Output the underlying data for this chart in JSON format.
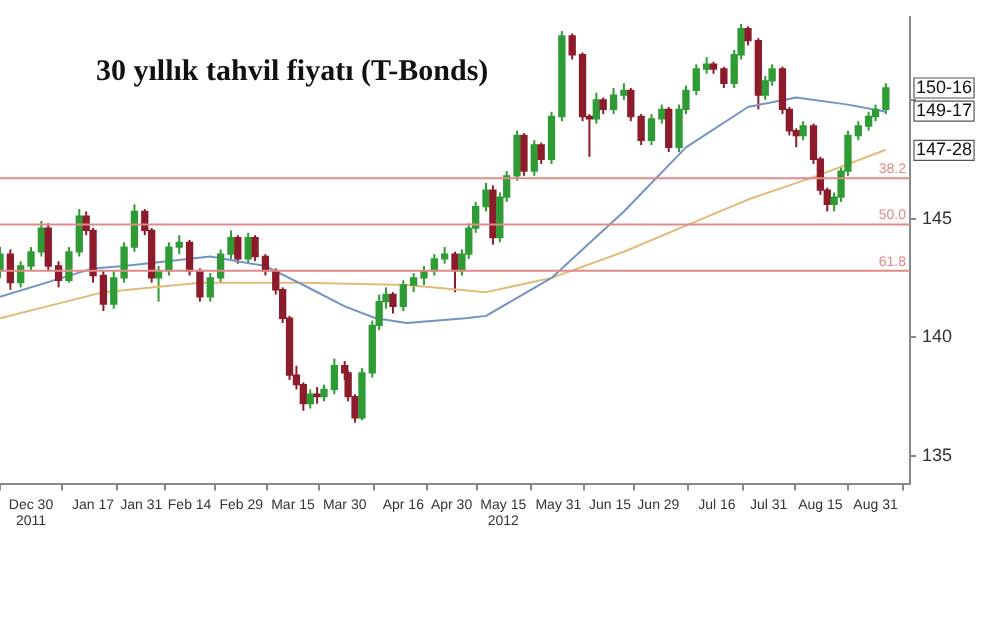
{
  "chart_data": {
    "type": "candlestick",
    "title": "30 yıllık tahvil fiyatı (T-Bonds)",
    "x": [
      "2011-12-21",
      "2011-12-24",
      "2011-12-27",
      "2011-12-30",
      "2012-01-02",
      "2012-01-04",
      "2012-01-07",
      "2012-01-10",
      "2012-01-13",
      "2012-01-15",
      "2012-01-17",
      "2012-01-20",
      "2012-01-23",
      "2012-01-26",
      "2012-01-29",
      "2012-02-01",
      "2012-02-03",
      "2012-02-05",
      "2012-02-08",
      "2012-02-11",
      "2012-02-14",
      "2012-02-17",
      "2012-02-20",
      "2012-02-23",
      "2012-02-26",
      "2012-02-28",
      "2012-03-02",
      "2012-03-04",
      "2012-03-07",
      "2012-03-10",
      "2012-03-12",
      "2012-03-14",
      "2012-03-16",
      "2012-03-18",
      "2012-03-20",
      "2012-03-22",
      "2012-03-24",
      "2012-03-27",
      "2012-03-30",
      "2012-03-31",
      "2012-04-02",
      "2012-04-04",
      "2012-04-07",
      "2012-04-09",
      "2012-04-11",
      "2012-04-13",
      "2012-04-16",
      "2012-04-19",
      "2012-04-22",
      "2012-04-25",
      "2012-04-28",
      "2012-05-01",
      "2012-05-03",
      "2012-05-05",
      "2012-05-07",
      "2012-05-10",
      "2012-05-12",
      "2012-05-14",
      "2012-05-16",
      "2012-05-19",
      "2012-05-21",
      "2012-05-24",
      "2012-05-26",
      "2012-05-29",
      "2012-06-01",
      "2012-06-04",
      "2012-06-07",
      "2012-06-09",
      "2012-06-11",
      "2012-06-13",
      "2012-06-16",
      "2012-06-19",
      "2012-06-21",
      "2012-06-24",
      "2012-06-27",
      "2012-06-30",
      "2012-07-02",
      "2012-07-05",
      "2012-07-07",
      "2012-07-10",
      "2012-07-13",
      "2012-07-15",
      "2012-07-18",
      "2012-07-21",
      "2012-07-23",
      "2012-07-25",
      "2012-07-28",
      "2012-07-30",
      "2012-08-01",
      "2012-08-04",
      "2012-08-06",
      "2012-08-08",
      "2012-08-10",
      "2012-08-13",
      "2012-08-15",
      "2012-08-17",
      "2012-08-19",
      "2012-08-21",
      "2012-08-23",
      "2012-08-26",
      "2012-08-29",
      "2012-08-31",
      "2012-09-03"
    ],
    "ohlc": [
      [
        142.8,
        143.8,
        142.5,
        143.5
      ],
      [
        143.5,
        143.7,
        142.0,
        142.3
      ],
      [
        142.3,
        143.2,
        142.1,
        143.0
      ],
      [
        143.0,
        143.8,
        142.8,
        143.6
      ],
      [
        143.6,
        144.9,
        143.4,
        144.6
      ],
      [
        144.6,
        144.8,
        142.8,
        143.0
      ],
      [
        143.0,
        143.2,
        142.1,
        142.4
      ],
      [
        142.4,
        143.8,
        142.3,
        143.6
      ],
      [
        143.6,
        145.4,
        143.4,
        145.1
      ],
      [
        145.1,
        145.3,
        144.3,
        144.5
      ],
      [
        144.5,
        144.6,
        142.3,
        142.6
      ],
      [
        142.6,
        142.8,
        141.1,
        141.4
      ],
      [
        141.4,
        142.8,
        141.2,
        142.5
      ],
      [
        142.5,
        144.0,
        142.3,
        143.8
      ],
      [
        143.8,
        145.6,
        143.6,
        145.3
      ],
      [
        145.3,
        145.4,
        144.3,
        144.5
      ],
      [
        144.5,
        144.6,
        142.3,
        142.5
      ],
      [
        142.5,
        143.0,
        141.5,
        142.8
      ],
      [
        142.8,
        144.0,
        142.6,
        143.8
      ],
      [
        143.8,
        144.3,
        143.5,
        144.0
      ],
      [
        144.0,
        144.1,
        142.6,
        142.8
      ],
      [
        142.8,
        142.9,
        141.5,
        141.7
      ],
      [
        141.7,
        142.7,
        141.5,
        142.5
      ],
      [
        142.5,
        143.7,
        142.3,
        143.5
      ],
      [
        143.5,
        144.5,
        143.3,
        144.2
      ],
      [
        144.2,
        144.3,
        143.1,
        143.3
      ],
      [
        143.3,
        144.4,
        143.1,
        144.2
      ],
      [
        144.2,
        144.3,
        143.2,
        143.4
      ],
      [
        143.4,
        143.5,
        142.6,
        142.8
      ],
      [
        142.8,
        142.9,
        141.8,
        142.0
      ],
      [
        142.0,
        142.1,
        140.6,
        140.8
      ],
      [
        140.8,
        140.9,
        138.2,
        138.4
      ],
      [
        138.4,
        138.8,
        137.8,
        138.0
      ],
      [
        138.0,
        138.1,
        136.9,
        137.2
      ],
      [
        137.2,
        137.8,
        137.0,
        137.6
      ],
      [
        137.6,
        137.9,
        137.2,
        137.5
      ],
      [
        137.5,
        138.0,
        137.3,
        137.8
      ],
      [
        137.8,
        139.1,
        137.6,
        138.8
      ],
      [
        138.8,
        139.0,
        138.2,
        138.5
      ],
      [
        138.5,
        138.6,
        137.3,
        137.5
      ],
      [
        137.5,
        137.6,
        136.4,
        136.6
      ],
      [
        136.6,
        138.7,
        136.5,
        138.5
      ],
      [
        138.5,
        140.7,
        138.3,
        140.5
      ],
      [
        140.5,
        141.8,
        140.3,
        141.5
      ],
      [
        141.5,
        142.1,
        141.2,
        141.8
      ],
      [
        141.8,
        141.9,
        141.0,
        141.3
      ],
      [
        141.3,
        142.4,
        141.1,
        142.2
      ],
      [
        142.2,
        142.7,
        141.9,
        142.5
      ],
      [
        142.5,
        143.0,
        142.2,
        142.8
      ],
      [
        142.8,
        143.5,
        142.6,
        143.3
      ],
      [
        143.3,
        143.8,
        143.1,
        143.5
      ],
      [
        143.5,
        143.6,
        141.9,
        142.8
      ],
      [
        142.8,
        143.7,
        142.6,
        143.5
      ],
      [
        143.5,
        144.8,
        143.3,
        144.6
      ],
      [
        144.6,
        145.7,
        144.4,
        145.5
      ],
      [
        145.5,
        146.5,
        145.3,
        146.2
      ],
      [
        146.2,
        146.4,
        143.9,
        144.2
      ],
      [
        144.2,
        146.1,
        144.0,
        145.9
      ],
      [
        145.9,
        147.0,
        145.7,
        146.8
      ],
      [
        146.8,
        148.7,
        146.6,
        148.5
      ],
      [
        148.5,
        148.6,
        146.8,
        147.0
      ],
      [
        147.0,
        148.3,
        146.8,
        148.1
      ],
      [
        148.1,
        148.2,
        147.3,
        147.5
      ],
      [
        147.5,
        149.5,
        147.3,
        149.3
      ],
      [
        149.3,
        152.9,
        149.1,
        152.7
      ],
      [
        152.7,
        152.8,
        151.7,
        151.9
      ],
      [
        151.9,
        152.0,
        149.1,
        149.3
      ],
      [
        149.3,
        149.4,
        147.6,
        149.2
      ],
      [
        149.2,
        150.3,
        149.0,
        150.0
      ],
      [
        150.0,
        150.1,
        149.4,
        149.6
      ],
      [
        149.6,
        150.5,
        149.4,
        150.2
      ],
      [
        150.2,
        150.7,
        150.0,
        150.4
      ],
      [
        150.4,
        150.5,
        149.1,
        149.3
      ],
      [
        149.3,
        149.4,
        148.1,
        148.3
      ],
      [
        148.3,
        149.4,
        148.1,
        149.2
      ],
      [
        149.2,
        149.8,
        149.0,
        149.6
      ],
      [
        149.6,
        149.7,
        147.8,
        148.0
      ],
      [
        148.0,
        149.8,
        147.8,
        149.6
      ],
      [
        149.6,
        150.6,
        149.4,
        150.4
      ],
      [
        150.4,
        151.5,
        150.2,
        151.3
      ],
      [
        151.3,
        151.8,
        151.1,
        151.5
      ],
      [
        151.5,
        151.6,
        151.1,
        151.3
      ],
      [
        151.3,
        151.4,
        150.5,
        150.7
      ],
      [
        150.7,
        152.1,
        150.5,
        151.9
      ],
      [
        151.9,
        153.2,
        151.7,
        153.0
      ],
      [
        153.0,
        153.1,
        152.3,
        152.5
      ],
      [
        152.5,
        152.6,
        149.6,
        150.2
      ],
      [
        150.2,
        151.0,
        150.0,
        150.8
      ],
      [
        150.8,
        151.5,
        150.6,
        151.3
      ],
      [
        151.3,
        151.4,
        149.4,
        149.6
      ],
      [
        149.6,
        149.7,
        148.5,
        148.7
      ],
      [
        148.7,
        148.8,
        148.0,
        148.5
      ],
      [
        148.5,
        149.1,
        148.3,
        148.9
      ],
      [
        148.9,
        149.0,
        147.3,
        147.5
      ],
      [
        147.5,
        147.6,
        146.0,
        146.2
      ],
      [
        146.2,
        146.3,
        145.3,
        145.6
      ],
      [
        145.6,
        146.1,
        145.3,
        145.9
      ],
      [
        145.9,
        147.2,
        145.7,
        147.0
      ],
      [
        147.0,
        148.7,
        146.8,
        148.5
      ],
      [
        148.5,
        149.1,
        148.3,
        148.9
      ],
      [
        148.9,
        149.5,
        148.7,
        149.3
      ],
      [
        149.3,
        149.8,
        149.1,
        149.6
      ],
      [
        149.6,
        150.7,
        149.4,
        150.5
      ]
    ],
    "colors": [
      "#2e9b35",
      "#8c1c2c",
      "#2e9b35",
      "#2e9b35",
      "#2e9b35",
      "#8c1c2c",
      "#8c1c2c",
      "#2e9b35",
      "#2e9b35",
      "#8c1c2c",
      "#8c1c2c",
      "#8c1c2c",
      "#2e9b35",
      "#2e9b35",
      "#2e9b35",
      "#8c1c2c",
      "#8c1c2c",
      "#2e9b35",
      "#2e9b35",
      "#2e9b35",
      "#8c1c2c",
      "#8c1c2c",
      "#2e9b35",
      "#2e9b35",
      "#2e9b35",
      "#8c1c2c",
      "#2e9b35",
      "#8c1c2c",
      "#8c1c2c",
      "#8c1c2c",
      "#8c1c2c",
      "#8c1c2c",
      "#8c1c2c",
      "#8c1c2c",
      "#2e9b35",
      "#8c1c2c",
      "#2e9b35",
      "#2e9b35",
      "#8c1c2c",
      "#8c1c2c",
      "#8c1c2c",
      "#2e9b35",
      "#2e9b35",
      "#2e9b35",
      "#2e9b35",
      "#8c1c2c",
      "#2e9b35",
      "#2e9b35",
      "#2e9b35",
      "#2e9b35",
      "#2e9b35",
      "#8c1c2c",
      "#2e9b35",
      "#2e9b35",
      "#2e9b35",
      "#2e9b35",
      "#8c1c2c",
      "#2e9b35",
      "#2e9b35",
      "#2e9b35",
      "#8c1c2c",
      "#2e9b35",
      "#8c1c2c",
      "#2e9b35",
      "#2e9b35",
      "#8c1c2c",
      "#8c1c2c",
      "#8c1c2c",
      "#2e9b35",
      "#8c1c2c",
      "#2e9b35",
      "#2e9b35",
      "#8c1c2c",
      "#8c1c2c",
      "#2e9b35",
      "#2e9b35",
      "#8c1c2c",
      "#2e9b35",
      "#2e9b35",
      "#2e9b35",
      "#2e9b35",
      "#8c1c2c",
      "#8c1c2c",
      "#2e9b35",
      "#2e9b35",
      "#8c1c2c",
      "#8c1c2c",
      "#2e9b35",
      "#2e9b35",
      "#8c1c2c",
      "#8c1c2c",
      "#8c1c2c",
      "#2e9b35",
      "#8c1c2c",
      "#8c1c2c",
      "#8c1c2c",
      "#2e9b35",
      "#2e9b35",
      "#2e9b35",
      "#2e9b35",
      "#2e9b35",
      "#2e9b35",
      "#2e9b35"
    ],
    "series": [
      {
        "type": "line",
        "color": "#7393c4",
        "x": [
          "2011-12-21",
          "2012-01-17",
          "2012-01-26",
          "2012-02-20",
          "2012-03-07",
          "2012-03-18",
          "2012-03-30",
          "2012-04-08",
          "2012-04-17",
          "2012-05-04",
          "2012-05-10",
          "2012-05-29",
          "2012-06-19",
          "2012-07-07",
          "2012-07-25",
          "2012-08-08",
          "2012-08-23",
          "2012-09-03"
        ],
        "values": [
          141.7,
          142.9,
          143.0,
          143.4,
          143.0,
          142.2,
          141.3,
          140.8,
          140.6,
          140.8,
          140.9,
          142.5,
          145.3,
          148.0,
          149.7,
          150.1,
          149.8,
          149.5
        ]
      },
      {
        "type": "line",
        "color": "#e3b978",
        "x": [
          "2011-12-21",
          "2012-01-20",
          "2012-02-17",
          "2012-03-18",
          "2012-04-17",
          "2012-05-10",
          "2012-05-29",
          "2012-06-19",
          "2012-07-07",
          "2012-07-25",
          "2012-08-14",
          "2012-09-03"
        ],
        "values": [
          140.8,
          141.9,
          142.3,
          142.3,
          142.2,
          141.9,
          142.5,
          143.6,
          144.7,
          145.8,
          146.8,
          147.9
        ]
      }
    ],
    "xlim": [
      "2011-12-21",
      "2012-09-10"
    ],
    "xticks": [
      {
        "value": "2011-12-30",
        "label": "Dec 30\n2011"
      },
      {
        "value": "2012-01-17",
        "label": "Jan 17"
      },
      {
        "value": "2012-01-31",
        "label": "Jan 31"
      },
      {
        "value": "2012-02-14",
        "label": "Feb 14"
      },
      {
        "value": "2012-02-29",
        "label": "Feb 29"
      },
      {
        "value": "2012-03-15",
        "label": "Mar 15"
      },
      {
        "value": "2012-03-30",
        "label": "Mar 30"
      },
      {
        "value": "2012-04-16",
        "label": "Apr 16"
      },
      {
        "value": "2012-04-30",
        "label": "Apr 30"
      },
      {
        "value": "2012-05-15",
        "label": "May 15\n2012"
      },
      {
        "value": "2012-05-31",
        "label": "May 31"
      },
      {
        "value": "2012-06-15",
        "label": "Jun 15"
      },
      {
        "value": "2012-06-29",
        "label": "Jun 29"
      },
      {
        "value": "2012-07-16",
        "label": "Jul 16"
      },
      {
        "value": "2012-07-31",
        "label": "Jul 31"
      },
      {
        "value": "2012-08-15",
        "label": "Aug 15"
      },
      {
        "value": "2012-08-31",
        "label": "Aug 31"
      }
    ],
    "ylim": [
      133.8,
      153.5
    ],
    "yticks": [
      135,
      140,
      145,
      {
        "value": 150,
        "label": null
      }
    ],
    "ref_lines": [
      {
        "axis": "y",
        "value": 146.7,
        "color": "#e08a8a"
      },
      {
        "axis": "y",
        "value": 144.75,
        "color": "#e08a8a"
      },
      {
        "axis": "y",
        "value": 142.8,
        "color": "#e08a8a"
      }
    ],
    "annotations": [
      {
        "text": "38.2",
        "y": 146.7
      },
      {
        "text": "50.0",
        "y": 144.75
      },
      {
        "text": "61.8",
        "y": 142.8
      },
      {
        "text": "150-16",
        "x": "2012-09-03",
        "y": 150.5
      },
      {
        "text": "149-17",
        "x": "2012-09-03",
        "y": 149.53
      },
      {
        "text": "147-28",
        "x": "2012-09-03",
        "y": 147.875
      }
    ],
    "grid": false,
    "legend": false
  }
}
